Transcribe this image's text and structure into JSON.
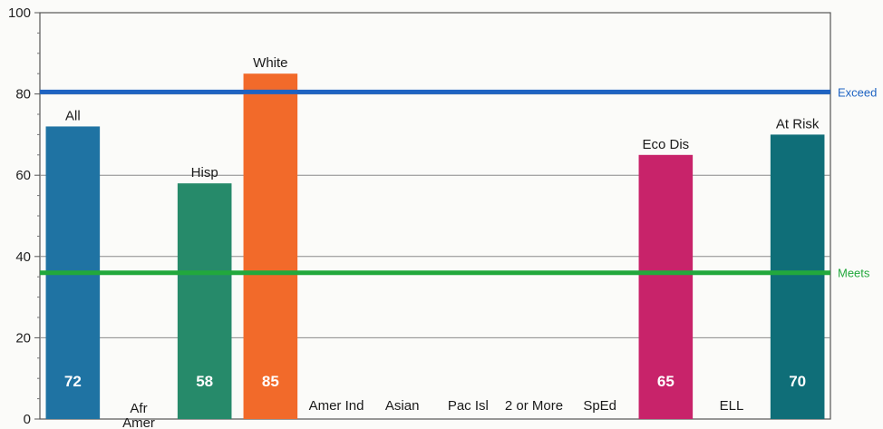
{
  "chart_data": {
    "type": "bar",
    "categories": [
      "All",
      "Afr Amer",
      "Hisp",
      "White",
      "Amer Ind",
      "Asian",
      "Pac Isl",
      "2 or More",
      "SpEd",
      "Eco Dis",
      "ELL",
      "At Risk"
    ],
    "values": [
      72,
      null,
      58,
      85,
      null,
      null,
      null,
      null,
      null,
      65,
      null,
      70
    ],
    "value_labels": [
      "72",
      "",
      "58",
      "85",
      "",
      "",
      "",
      "",
      "",
      "65",
      "",
      "70"
    ],
    "colors": [
      "#1f73a3",
      null,
      "#268a6a",
      "#f26a2a",
      null,
      null,
      null,
      null,
      null,
      "#c8236a",
      null,
      "#0f6e78"
    ],
    "ylim": [
      0,
      100
    ],
    "yticks": [
      "0",
      "20",
      "40",
      "60",
      "80",
      "100"
    ],
    "grid": true,
    "reference_lines": [
      {
        "label": "Exceed",
        "value": 80.5,
        "color": "#1e63c2"
      },
      {
        "label": "Meets",
        "value": 36,
        "color": "#22a83c"
      }
    ]
  }
}
